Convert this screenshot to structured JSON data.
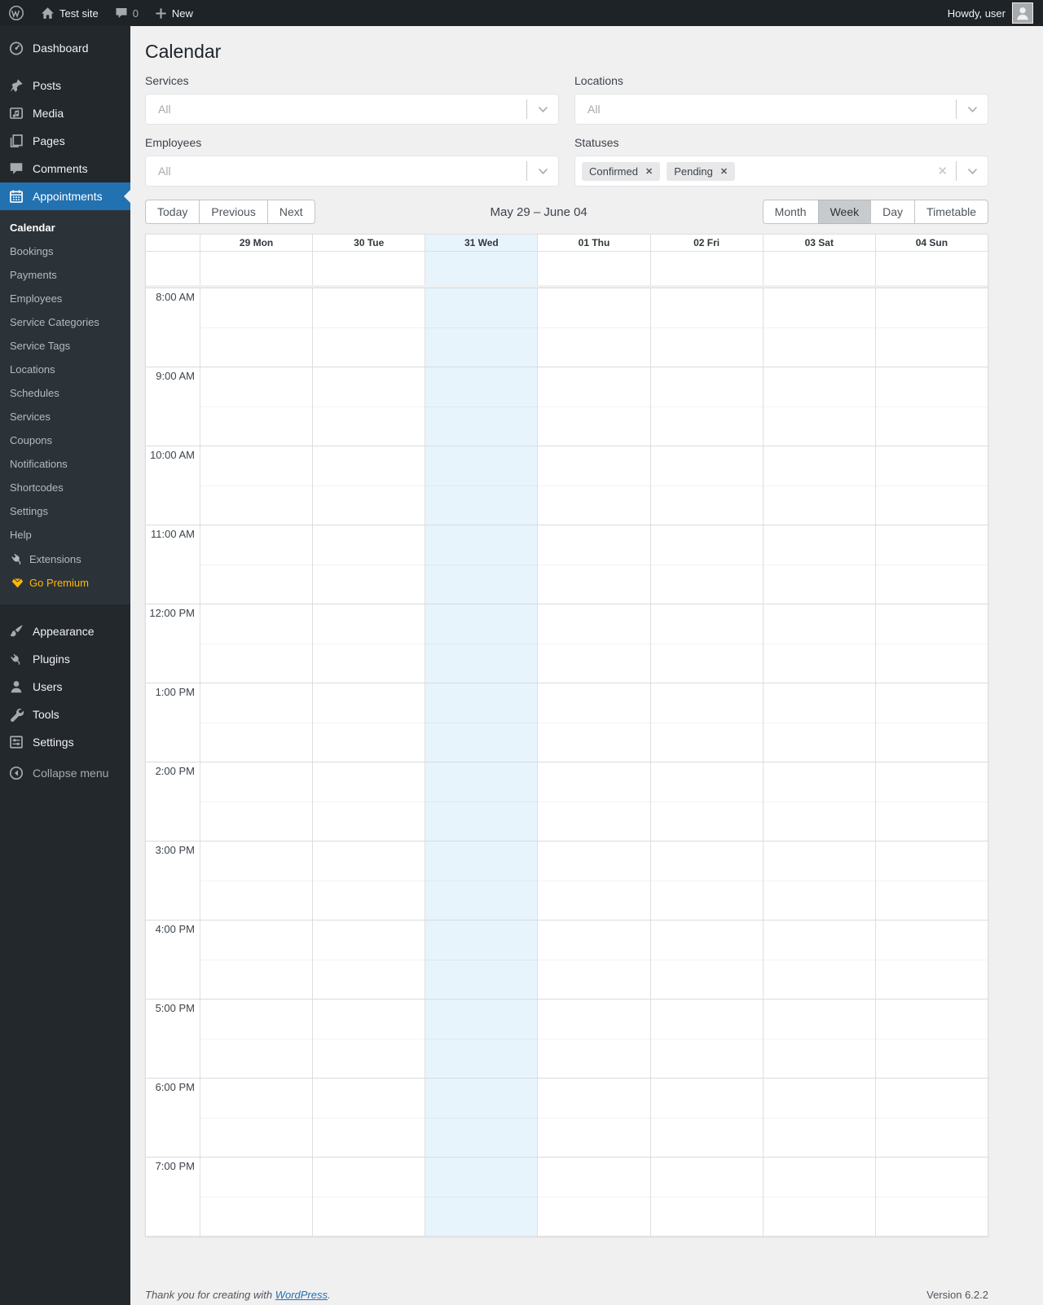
{
  "admin_bar": {
    "site_name": "Test site",
    "comments_count": "0",
    "new_label": "New",
    "howdy": "Howdy, user"
  },
  "sidebar": {
    "top_items": [
      {
        "label": "Dashboard",
        "icon": "dashboard-icon",
        "active": false
      },
      {
        "label": "Posts",
        "icon": "posts-icon",
        "active": false
      },
      {
        "label": "Media",
        "icon": "media-icon",
        "active": false
      },
      {
        "label": "Pages",
        "icon": "pages-icon",
        "active": false
      },
      {
        "label": "Comments",
        "icon": "comments-icon",
        "active": false
      },
      {
        "label": "Appointments",
        "icon": "appointments-icon",
        "active": true
      }
    ],
    "submenu": [
      {
        "label": "Calendar",
        "current": true
      },
      {
        "label": "Bookings"
      },
      {
        "label": "Payments"
      },
      {
        "label": "Employees"
      },
      {
        "label": "Service Categories"
      },
      {
        "label": "Service Tags"
      },
      {
        "label": "Locations"
      },
      {
        "label": "Schedules"
      },
      {
        "label": "Services"
      },
      {
        "label": "Coupons"
      },
      {
        "label": "Notifications"
      },
      {
        "label": "Shortcodes"
      },
      {
        "label": "Settings"
      },
      {
        "label": "Help"
      },
      {
        "label": "Extensions",
        "icon": "extensions-icon"
      },
      {
        "label": "Go Premium",
        "icon": "premium-icon",
        "accent": true
      }
    ],
    "bottom_items": [
      {
        "label": "Appearance",
        "icon": "appearance-icon"
      },
      {
        "label": "Plugins",
        "icon": "plugins-icon"
      },
      {
        "label": "Users",
        "icon": "users-icon"
      },
      {
        "label": "Tools",
        "icon": "tools-icon"
      },
      {
        "label": "Settings",
        "icon": "settings-icon"
      }
    ],
    "collapse_label": "Collapse menu"
  },
  "page": {
    "title": "Calendar"
  },
  "filters": {
    "services": {
      "label": "Services",
      "value": "All"
    },
    "locations": {
      "label": "Locations",
      "value": "All"
    },
    "employees": {
      "label": "Employees",
      "value": "All"
    },
    "statuses": {
      "label": "Statuses",
      "tags": [
        "Confirmed",
        "Pending"
      ]
    }
  },
  "toolbar": {
    "today_label": "Today",
    "previous_label": "Previous",
    "next_label": "Next",
    "range": "May 29 – June 04",
    "views": [
      "Month",
      "Week",
      "Day",
      "Timetable"
    ],
    "active_view": "Week"
  },
  "calendar": {
    "days": [
      {
        "label": "29 Mon",
        "today": false
      },
      {
        "label": "30 Tue",
        "today": false
      },
      {
        "label": "31 Wed",
        "today": true
      },
      {
        "label": "01 Thu",
        "today": false
      },
      {
        "label": "02 Fri",
        "today": false
      },
      {
        "label": "03 Sat",
        "today": false
      },
      {
        "label": "04 Sun",
        "today": false
      }
    ],
    "times": [
      "8:00 AM",
      "9:00 AM",
      "10:00 AM",
      "11:00 AM",
      "12:00 PM",
      "1:00 PM",
      "2:00 PM",
      "3:00 PM",
      "4:00 PM",
      "5:00 PM",
      "6:00 PM",
      "7:00 PM"
    ]
  },
  "footer": {
    "thanks_prefix": "Thank you for creating with ",
    "link_label": "WordPress",
    "suffix": ".",
    "version": "Version 6.2.2"
  },
  "colors": {
    "accent": "#2271b1",
    "today_bg": "#e8f4fc",
    "premium": "#ffb900"
  }
}
